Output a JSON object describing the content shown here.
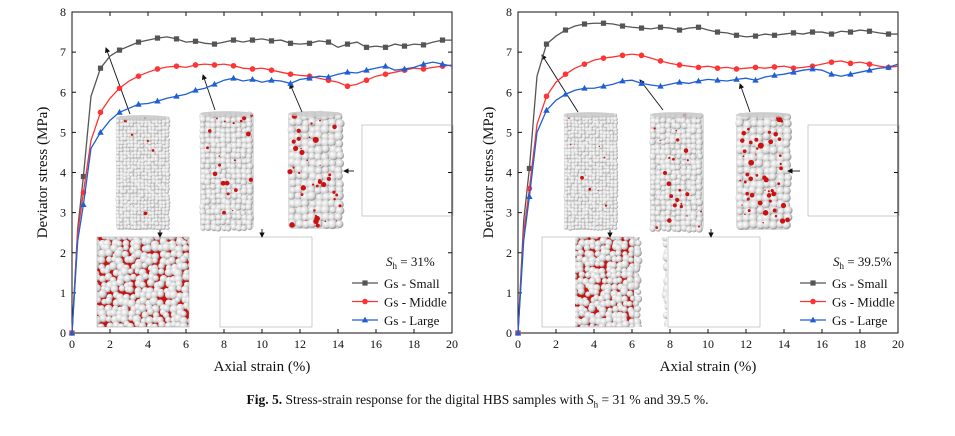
{
  "figure": {
    "caption_label": "Fig. 5.",
    "caption_pre": "Stress-strain response for the digital HBS samples with ",
    "caption_var": "S",
    "caption_sub": "h",
    "caption_post": " = 31 % and 39.5 %."
  },
  "colors": {
    "small": "#555555",
    "middle": "#ff3333",
    "large": "#1f5fd6",
    "hydrate_red": "#cc1111",
    "sphere_grey": "#e6e6e6"
  },
  "chart_data": [
    {
      "type": "line",
      "panel": "left",
      "xlabel": "Axial strain (%)",
      "ylabel": "Deviator stress (MPa)",
      "xlim": [
        0,
        20
      ],
      "ylim": [
        0,
        8
      ],
      "xticks": [
        "0",
        "2",
        "4",
        "6",
        "8",
        "10",
        "12",
        "14",
        "16",
        "18",
        "20"
      ],
      "yticks": [
        "0",
        "1",
        "2",
        "3",
        "4",
        "5",
        "6",
        "7",
        "8"
      ],
      "annotation_var": "S",
      "annotation_sub": "h",
      "annotation_value": " = 31%",
      "legend_position": "bottom-right",
      "series": [
        {
          "key": "small",
          "name": "Gs - Small",
          "x": [
            0,
            0.3,
            0.6,
            1,
            1.5,
            2,
            2.5,
            3,
            3.5,
            4,
            4.5,
            5,
            5.5,
            6,
            6.5,
            7,
            7.5,
            8,
            8.5,
            9,
            9.5,
            10,
            10.5,
            11,
            11.5,
            12,
            12.5,
            13,
            13.5,
            14,
            14.5,
            15,
            15.5,
            16,
            16.5,
            17,
            17.5,
            18,
            18.5,
            19,
            19.5,
            20
          ],
          "y": [
            0,
            2.6,
            3.9,
            5.9,
            6.6,
            6.9,
            7.05,
            7.15,
            7.25,
            7.3,
            7.35,
            7.38,
            7.33,
            7.25,
            7.27,
            7.22,
            7.2,
            7.25,
            7.3,
            7.25,
            7.3,
            7.33,
            7.28,
            7.3,
            7.22,
            7.2,
            7.22,
            7.28,
            7.25,
            7.12,
            7.2,
            7.25,
            7.12,
            7.15,
            7.12,
            7.2,
            7.15,
            7.2,
            7.18,
            7.25,
            7.3,
            7.3
          ]
        },
        {
          "key": "middle",
          "name": "Gs - Middle",
          "x": [
            0,
            0.3,
            0.6,
            1,
            1.5,
            2,
            2.5,
            3,
            3.5,
            4,
            4.5,
            5,
            5.5,
            6,
            6.5,
            7,
            7.5,
            8,
            8.5,
            9,
            9.5,
            10,
            10.5,
            11,
            11.5,
            12,
            12.5,
            13,
            13.5,
            14,
            14.5,
            15,
            15.5,
            16,
            16.5,
            17,
            17.5,
            18,
            18.5,
            19,
            19.5,
            20
          ],
          "y": [
            0,
            2.5,
            3.5,
            4.8,
            5.5,
            5.85,
            6.1,
            6.28,
            6.4,
            6.5,
            6.58,
            6.63,
            6.65,
            6.62,
            6.68,
            6.7,
            6.68,
            6.7,
            6.66,
            6.6,
            6.58,
            6.6,
            6.55,
            6.5,
            6.45,
            6.42,
            6.4,
            6.35,
            6.3,
            6.25,
            6.15,
            6.2,
            6.3,
            6.4,
            6.45,
            6.5,
            6.55,
            6.6,
            6.58,
            6.62,
            6.65,
            6.68
          ]
        },
        {
          "key": "large",
          "name": "Gs - Large",
          "x": [
            0,
            0.3,
            0.6,
            1,
            1.5,
            2,
            2.5,
            3,
            3.5,
            4,
            4.5,
            5,
            5.5,
            6,
            6.5,
            7,
            7.5,
            8,
            8.5,
            9,
            9.5,
            10,
            10.5,
            11,
            11.5,
            12,
            12.5,
            13,
            13.5,
            14,
            14.5,
            15,
            15.5,
            16,
            16.5,
            17,
            17.5,
            18,
            18.5,
            19,
            19.5,
            20
          ],
          "y": [
            0,
            2.3,
            3.2,
            4.6,
            5.0,
            5.3,
            5.5,
            5.6,
            5.7,
            5.72,
            5.78,
            5.85,
            5.9,
            5.95,
            6.05,
            6.1,
            6.2,
            6.3,
            6.35,
            6.28,
            6.32,
            6.25,
            6.3,
            6.28,
            6.22,
            6.32,
            6.35,
            6.4,
            6.38,
            6.45,
            6.5,
            6.48,
            6.55,
            6.6,
            6.65,
            6.55,
            6.58,
            6.62,
            6.7,
            6.75,
            6.7,
            6.65
          ]
        }
      ]
    },
    {
      "type": "line",
      "panel": "right",
      "xlabel": "Axial strain (%)",
      "ylabel": "Deviator stress (MPa)",
      "xlim": [
        0,
        20
      ],
      "ylim": [
        0,
        8
      ],
      "xticks": [
        "0",
        "2",
        "4",
        "6",
        "8",
        "10",
        "12",
        "14",
        "16",
        "18",
        "20"
      ],
      "yticks": [
        "0",
        "1",
        "2",
        "3",
        "4",
        "5",
        "6",
        "7",
        "8"
      ],
      "annotation_var": "S",
      "annotation_sub": "h",
      "annotation_value": " = 39.5%",
      "legend_position": "bottom-right",
      "series": [
        {
          "key": "small",
          "name": "Gs - Small",
          "x": [
            0,
            0.3,
            0.6,
            1,
            1.5,
            2,
            2.5,
            3,
            3.5,
            4,
            4.5,
            5,
            5.5,
            6,
            6.5,
            7,
            7.5,
            8,
            8.5,
            9,
            9.5,
            10,
            10.5,
            11,
            11.5,
            12,
            12.5,
            13,
            13.5,
            14,
            14.5,
            15,
            15.5,
            16,
            16.5,
            17,
            17.5,
            18,
            18.5,
            19,
            19.5,
            20
          ],
          "y": [
            0,
            2.8,
            4.1,
            6.4,
            7.2,
            7.4,
            7.55,
            7.65,
            7.7,
            7.72,
            7.72,
            7.7,
            7.65,
            7.62,
            7.6,
            7.58,
            7.62,
            7.6,
            7.55,
            7.6,
            7.62,
            7.55,
            7.5,
            7.48,
            7.42,
            7.38,
            7.4,
            7.45,
            7.42,
            7.45,
            7.48,
            7.45,
            7.5,
            7.5,
            7.45,
            7.52,
            7.5,
            7.55,
            7.52,
            7.48,
            7.45,
            7.45
          ]
        },
        {
          "key": "middle",
          "name": "Gs - Middle",
          "x": [
            0,
            0.3,
            0.6,
            1,
            1.5,
            2,
            2.5,
            3,
            3.5,
            4,
            4.5,
            5,
            5.5,
            6,
            6.5,
            7,
            7.5,
            8,
            8.5,
            9,
            9.5,
            10,
            10.5,
            11,
            11.5,
            12,
            12.5,
            13,
            13.5,
            14,
            14.5,
            15,
            15.5,
            16,
            16.5,
            17,
            17.5,
            18,
            18.5,
            19,
            19.5,
            20
          ],
          "y": [
            0,
            2.5,
            3.6,
            5.2,
            5.9,
            6.25,
            6.45,
            6.6,
            6.7,
            6.8,
            6.85,
            6.88,
            6.92,
            6.95,
            6.92,
            6.85,
            6.78,
            6.72,
            6.68,
            6.65,
            6.62,
            6.65,
            6.6,
            6.62,
            6.58,
            6.6,
            6.62,
            6.6,
            6.63,
            6.65,
            6.6,
            6.62,
            6.65,
            6.7,
            6.75,
            6.78,
            6.72,
            6.75,
            6.7,
            6.65,
            6.62,
            6.65
          ]
        },
        {
          "key": "large",
          "name": "Gs - Large",
          "x": [
            0,
            0.3,
            0.6,
            1,
            1.5,
            2,
            2.5,
            3,
            3.5,
            4,
            4.5,
            5,
            5.5,
            6,
            6.5,
            7,
            7.5,
            8,
            8.5,
            9,
            9.5,
            10,
            10.5,
            11,
            11.5,
            12,
            12.5,
            13,
            13.5,
            14,
            14.5,
            15,
            15.5,
            16,
            16.5,
            17,
            17.5,
            18,
            18.5,
            19,
            19.5,
            20
          ],
          "y": [
            0,
            2.3,
            3.4,
            5.0,
            5.55,
            5.8,
            5.95,
            6.05,
            6.1,
            6.1,
            6.15,
            6.2,
            6.28,
            6.3,
            6.22,
            6.18,
            6.15,
            6.2,
            6.25,
            6.22,
            6.28,
            6.32,
            6.3,
            6.28,
            6.32,
            6.35,
            6.3,
            6.38,
            6.42,
            6.45,
            6.5,
            6.55,
            6.58,
            6.55,
            6.45,
            6.4,
            6.45,
            6.5,
            6.55,
            6.6,
            6.62,
            6.7
          ]
        }
      ]
    }
  ]
}
